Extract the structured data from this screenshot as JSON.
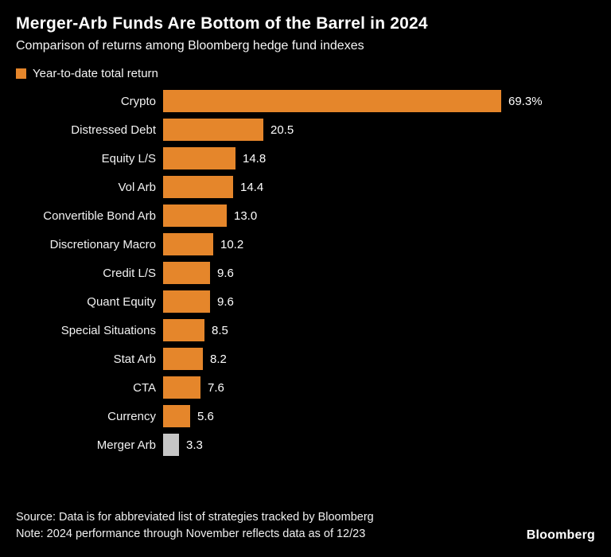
{
  "chart_data": {
    "type": "bar",
    "orientation": "horizontal",
    "title": "Merger-Arb Funds Are Bottom of the Barrel in 2024",
    "subtitle": "Comparison of returns among Bloomberg hedge fund indexes",
    "legend_label": "Year-to-date total return",
    "categories": [
      "Crypto",
      "Distressed Debt",
      "Equity L/S",
      "Vol Arb",
      "Convertible Bond Arb",
      "Discretionary Macro",
      "Credit L/S",
      "Quant Equity",
      "Special Situations",
      "Stat Arb",
      "CTA",
      "Currency",
      "Merger Arb"
    ],
    "values": [
      69.3,
      20.5,
      14.8,
      14.4,
      13.0,
      10.2,
      9.6,
      9.6,
      8.5,
      8.2,
      7.6,
      5.6,
      3.3
    ],
    "value_labels": [
      "69.3%",
      "20.5",
      "14.8",
      "14.4",
      "13.0",
      "10.2",
      "9.6",
      "9.6",
      "8.5",
      "8.2",
      "7.6",
      "5.6",
      "3.3"
    ],
    "xlim": [
      0,
      69.3
    ],
    "bar_color": "#E5862B",
    "highlight_category": "Merger Arb",
    "highlight_color": "#C6C6C6",
    "legend_position": "top-left",
    "grid": false
  },
  "footer": {
    "source": "Source: Data is for abbreviated list of strategies tracked by Bloomberg",
    "note": "Note: 2024 performance through November reflects data as of 12/23",
    "brand": "Bloomberg"
  },
  "colors": {
    "background": "#000000",
    "text": "#FFFFFF",
    "accent": "#E5862B"
  }
}
